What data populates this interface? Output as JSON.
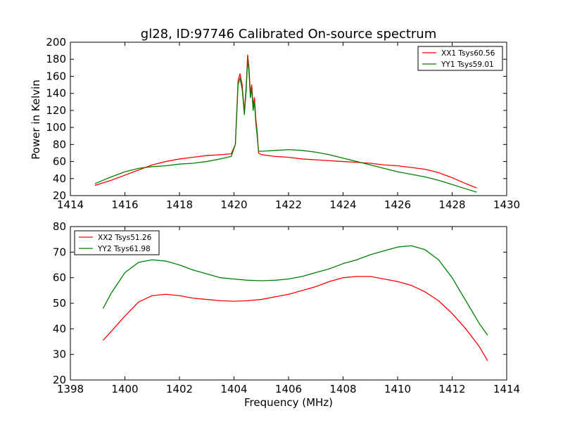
{
  "figure": {
    "title": "gl28, ID:97746 Calibrated On-source spectrum",
    "ylabel": "Power in Kelvin",
    "xlabel": "Frequency (MHz)"
  },
  "chart_data": [
    {
      "type": "line",
      "xlim": [
        1414,
        1430
      ],
      "ylim": [
        20,
        200
      ],
      "xticks": [
        1414,
        1416,
        1418,
        1420,
        1422,
        1424,
        1426,
        1428,
        1430
      ],
      "yticks": [
        20,
        40,
        60,
        80,
        100,
        120,
        140,
        160,
        180,
        200
      ],
      "legend_position": "top-right",
      "grid": false,
      "series": [
        {
          "name": "XX1 Tsys60.56",
          "color": "#ff0000",
          "x": [
            1414.9,
            1415.5,
            1416.0,
            1416.5,
            1417.0,
            1417.5,
            1418.0,
            1418.5,
            1419.0,
            1419.5,
            1419.9,
            1420.05,
            1420.15,
            1420.22,
            1420.3,
            1420.38,
            1420.45,
            1420.5,
            1420.55,
            1420.6,
            1420.65,
            1420.7,
            1420.75,
            1420.8,
            1420.85,
            1420.9,
            1421.0,
            1421.5,
            1422.0,
            1422.5,
            1423.0,
            1423.5,
            1424.0,
            1424.5,
            1425.0,
            1425.5,
            1426.0,
            1426.5,
            1427.0,
            1427.5,
            1428.0,
            1428.5,
            1428.9
          ],
          "y": [
            32,
            38,
            44,
            50,
            56,
            60,
            63,
            65,
            67,
            68,
            69,
            80,
            155,
            163,
            150,
            118,
            150,
            185,
            170,
            140,
            150,
            125,
            135,
            110,
            95,
            70,
            68,
            66,
            65,
            63,
            62,
            61,
            60,
            59,
            58,
            56,
            55,
            53,
            51,
            47,
            41,
            34,
            29
          ]
        },
        {
          "name": "YY1 Tsys59.01",
          "color": "#008000",
          "x": [
            1414.9,
            1415.5,
            1416.0,
            1416.5,
            1417.0,
            1417.5,
            1418.0,
            1418.5,
            1419.0,
            1419.5,
            1419.9,
            1420.05,
            1420.15,
            1420.22,
            1420.3,
            1420.38,
            1420.45,
            1420.5,
            1420.55,
            1420.6,
            1420.65,
            1420.7,
            1420.75,
            1420.8,
            1420.85,
            1420.9,
            1421.0,
            1421.5,
            1422.0,
            1422.5,
            1423.0,
            1423.5,
            1424.0,
            1424.5,
            1425.0,
            1425.5,
            1426.0,
            1426.5,
            1427.0,
            1427.5,
            1428.0,
            1428.5,
            1428.9
          ],
          "y": [
            34,
            42,
            48,
            52,
            54,
            55,
            57,
            58,
            60,
            63,
            66,
            80,
            150,
            158,
            145,
            115,
            145,
            180,
            165,
            135,
            145,
            120,
            130,
            105,
            90,
            72,
            72,
            73,
            74,
            73,
            71,
            68,
            64,
            60,
            56,
            52,
            48,
            45,
            42,
            38,
            33,
            28,
            24
          ]
        }
      ]
    },
    {
      "type": "line",
      "xlim": [
        1398,
        1414
      ],
      "ylim": [
        20,
        80
      ],
      "xticks": [
        1398,
        1400,
        1402,
        1404,
        1406,
        1408,
        1410,
        1412,
        1414
      ],
      "yticks": [
        20,
        30,
        40,
        50,
        60,
        70,
        80
      ],
      "legend_position": "top-left",
      "grid": false,
      "series": [
        {
          "name": "XX2 Tsys51.26",
          "color": "#ff0000",
          "x": [
            1399.2,
            1399.5,
            1400.0,
            1400.5,
            1401.0,
            1401.5,
            1402.0,
            1402.5,
            1403.0,
            1403.5,
            1404.0,
            1404.5,
            1405.0,
            1405.5,
            1406.0,
            1406.5,
            1407.0,
            1407.5,
            1408.0,
            1408.5,
            1409.0,
            1409.5,
            1410.0,
            1410.5,
            1411.0,
            1411.5,
            1412.0,
            1412.5,
            1413.0,
            1413.3
          ],
          "y": [
            35.5,
            39,
            45,
            50.5,
            53,
            53.5,
            53,
            52,
            51.5,
            51,
            50.8,
            51,
            51.5,
            52.5,
            53.5,
            55,
            56.5,
            58.5,
            60,
            60.5,
            60.5,
            59.5,
            58.5,
            57,
            54.5,
            51,
            46,
            40,
            33,
            27.5
          ]
        },
        {
          "name": "YY2 Tsys61.98",
          "color": "#008000",
          "x": [
            1399.2,
            1399.5,
            1400.0,
            1400.5,
            1401.0,
            1401.5,
            1402.0,
            1402.5,
            1403.0,
            1403.5,
            1404.0,
            1404.5,
            1405.0,
            1405.5,
            1406.0,
            1406.5,
            1407.0,
            1407.5,
            1408.0,
            1408.5,
            1409.0,
            1409.5,
            1410.0,
            1410.5,
            1411.0,
            1411.5,
            1412.0,
            1412.5,
            1413.0,
            1413.3
          ],
          "y": [
            48,
            54,
            62,
            66,
            67,
            66.5,
            65,
            63,
            61.5,
            60,
            59.5,
            59,
            58.8,
            59,
            59.5,
            60.5,
            62,
            63.5,
            65.5,
            67,
            69,
            70.5,
            72,
            72.5,
            71,
            67,
            60,
            51,
            42,
            37.5
          ]
        }
      ]
    }
  ]
}
